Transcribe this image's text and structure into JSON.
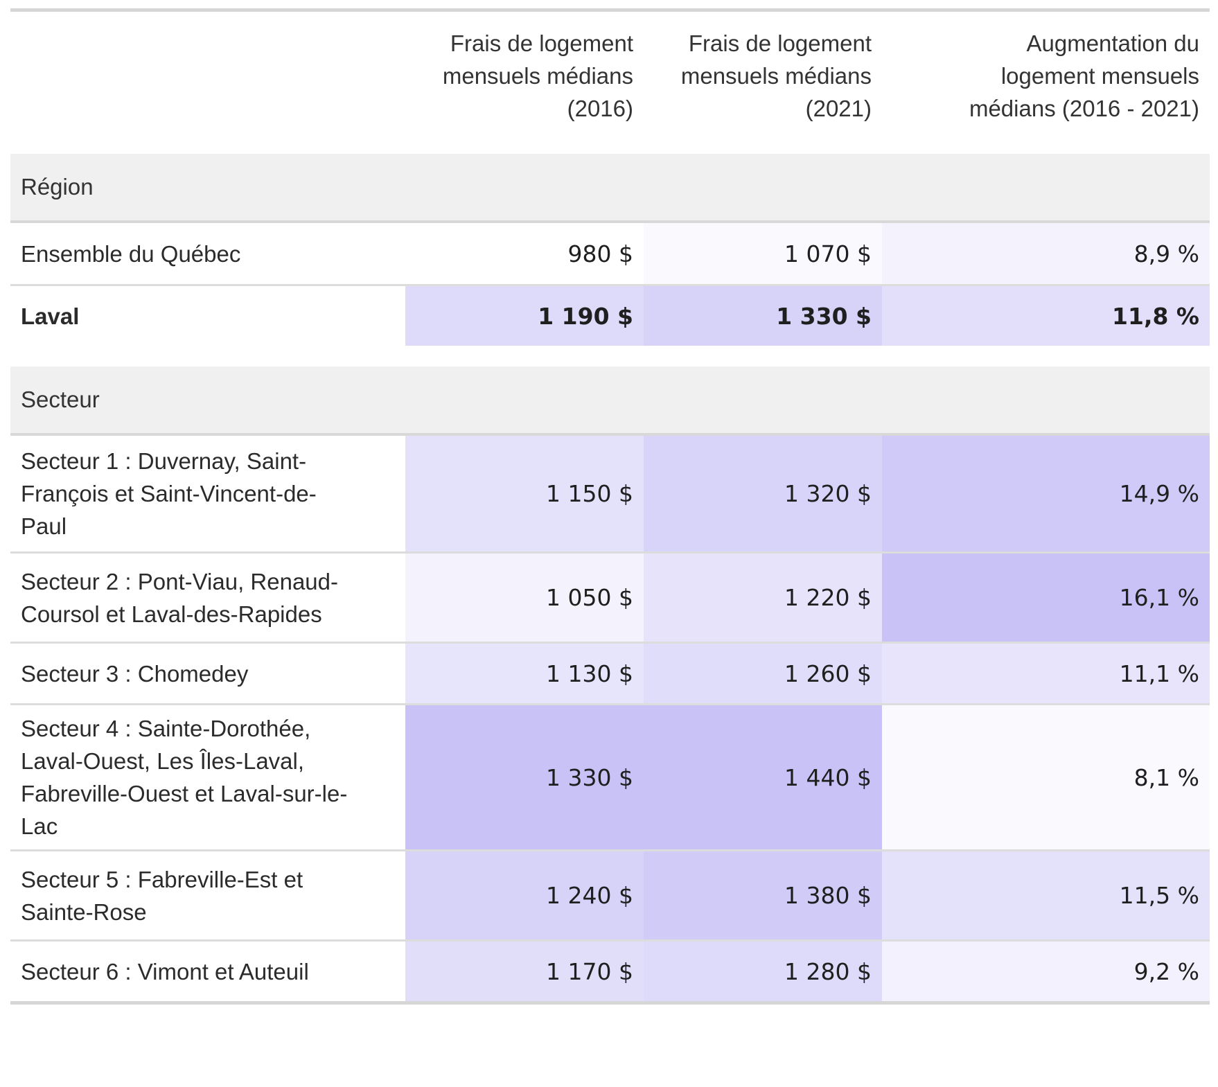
{
  "chart_data": {
    "type": "table",
    "columns": [
      "",
      "Frais de logement mensuels médians (2016)",
      "Frais de logement mensuels médians (2021)",
      "Augmentation du logement mensuels médians (2016 - 2021)"
    ],
    "header_lines": [
      [
        "Frais de logement",
        "mensuels médians",
        "(2016)"
      ],
      [
        "Frais de logement",
        "mensuels médians",
        "(2021)"
      ],
      [
        "Augmentation du",
        "logement mensuels",
        "médians (2016 - 2021)"
      ]
    ],
    "groups": [
      {
        "label": "Région",
        "rows": [
          {
            "lines": [
              "Ensemble du Québec"
            ],
            "v2016": 980,
            "v2021": 1070,
            "change": 8.9,
            "d2016": "980 $",
            "d2021": "1 070 $",
            "dchange": "8,9 %",
            "bold": false
          },
          {
            "lines": [
              "Laval"
            ],
            "v2016": 1190,
            "v2021": 1330,
            "change": 11.8,
            "d2016": "1 190 $",
            "d2021": "1 330 $",
            "dchange": "11,8 %",
            "bold": true
          }
        ]
      },
      {
        "label": "Secteur",
        "rows": [
          {
            "lines": [
              "Secteur 1 : Duvernay, Saint-",
              "François et Saint-Vincent-de-",
              "Paul"
            ],
            "v2016": 1150,
            "v2021": 1320,
            "change": 14.9,
            "d2016": "1 150 $",
            "d2021": "1 320 $",
            "dchange": "14,9 %",
            "bold": false
          },
          {
            "lines": [
              "Secteur 2 : Pont-Viau, Renaud-",
              "Coursol et Laval-des-Rapides"
            ],
            "v2016": 1050,
            "v2021": 1220,
            "change": 16.1,
            "d2016": "1 050 $",
            "d2021": "1 220 $",
            "dchange": "16,1 %",
            "bold": false
          },
          {
            "lines": [
              "Secteur 3 : Chomedey"
            ],
            "v2016": 1130,
            "v2021": 1260,
            "change": 11.1,
            "d2016": "1 130 $",
            "d2021": "1 260 $",
            "dchange": "11,1 %",
            "bold": false
          },
          {
            "lines": [
              "Secteur 4 : Sainte-Dorothée,",
              "Laval-Ouest, Les Îles-Laval,",
              "Fabreville-Ouest et Laval-sur-le-",
              "Lac"
            ],
            "v2016": 1330,
            "v2021": 1440,
            "change": 8.1,
            "d2016": "1 330 $",
            "d2021": "1 440 $",
            "dchange": "8,1 %",
            "bold": false
          },
          {
            "lines": [
              "Secteur 5 : Fabreville-Est et",
              "Sainte-Rose"
            ],
            "v2016": 1240,
            "v2021": 1380,
            "change": 11.5,
            "d2016": "1 240 $",
            "d2021": "1 380 $",
            "dchange": "11,5 %",
            "bold": false
          },
          {
            "lines": [
              "Secteur 6 : Vimont et Auteuil"
            ],
            "v2016": 1170,
            "v2021": 1280,
            "change": 9.2,
            "d2016": "1 170 $",
            "d2021": "1 280 $",
            "dchange": "9,2 %",
            "bold": false
          }
        ]
      }
    ],
    "color_scale": {
      "low": "#ffffff",
      "high": "#c8c2f6"
    }
  }
}
